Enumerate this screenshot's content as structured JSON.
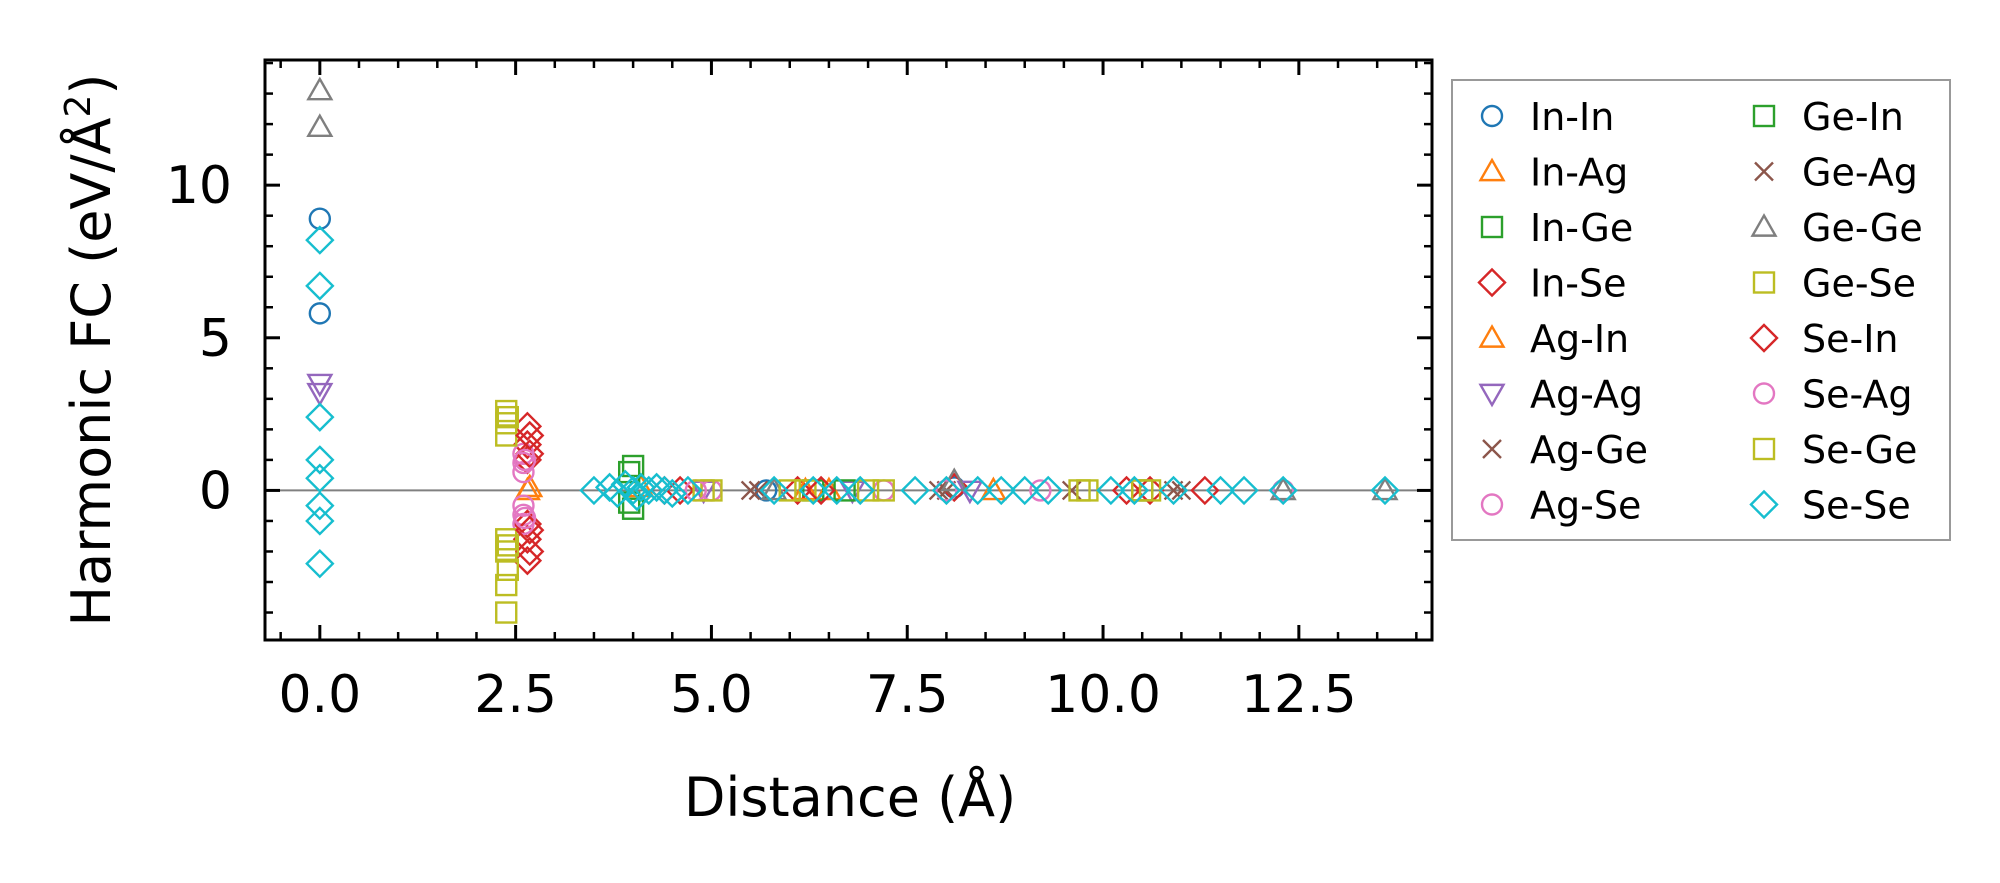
{
  "chart_data": {
    "type": "scatter",
    "title": "",
    "xlabel": "Distance (Å)",
    "ylabel": "Harmonic FC (eV/Å",
    "ylabel_sup": "2",
    "ylabel_end": ")",
    "xlim": [
      -0.7,
      14.2
    ],
    "ylim": [
      -4.9,
      14.1
    ],
    "x_ticks": [
      0.0,
      2.5,
      5.0,
      7.5,
      10.0,
      12.5
    ],
    "x_tick_labels": [
      "0.0",
      "2.5",
      "5.0",
      "7.5",
      "10.0",
      "12.5"
    ],
    "y_ticks": [
      0,
      5,
      10
    ],
    "y_tick_labels": [
      "0",
      "5",
      "10"
    ],
    "reference_line_y": 0,
    "legend_position": "outside-right",
    "series": [
      {
        "name": "In-In",
        "marker": "circle",
        "color": "#1f77b4",
        "points": [
          [
            0,
            8.9
          ],
          [
            0,
            5.8
          ],
          [
            5.7,
            0.0
          ],
          [
            8.1,
            0.1
          ],
          [
            12.3,
            0.0
          ]
        ]
      },
      {
        "name": "In-Ag",
        "marker": "triangle-up",
        "color": "#ff7f0e",
        "points": [
          [
            2.65,
            0.0
          ],
          [
            4.1,
            0.1
          ],
          [
            6.5,
            0.0
          ],
          [
            8.6,
            0.0
          ]
        ]
      },
      {
        "name": "In-Ge",
        "marker": "square",
        "color": "#2ca02c",
        "points": [
          [
            4.0,
            0.8
          ],
          [
            4.0,
            -0.6
          ],
          [
            6.3,
            0.0
          ],
          [
            10.5,
            0.0
          ]
        ]
      },
      {
        "name": "In-Se",
        "marker": "diamond",
        "color": "#d62728",
        "points": [
          [
            2.65,
            2.1
          ],
          [
            2.65,
            1.5
          ],
          [
            2.65,
            1.0
          ],
          [
            2.65,
            -1.1
          ],
          [
            2.65,
            -1.6
          ],
          [
            2.65,
            -2.3
          ],
          [
            4.4,
            0.0
          ],
          [
            6.1,
            0.0
          ],
          [
            8.1,
            0.1
          ],
          [
            10.3,
            0.0
          ],
          [
            11.3,
            0.0
          ]
        ]
      },
      {
        "name": "Ag-In",
        "marker": "triangle-up",
        "color": "#ff7f0e",
        "points": [
          [
            2.68,
            0.1
          ],
          [
            6.2,
            0.0
          ]
        ]
      },
      {
        "name": "Ag-Ag",
        "marker": "triangle-down",
        "color": "#9467bd",
        "points": [
          [
            0,
            3.5
          ],
          [
            0,
            3.2
          ],
          [
            4.9,
            0.0
          ],
          [
            6.8,
            0.0
          ],
          [
            8.3,
            0.0
          ]
        ]
      },
      {
        "name": "Ag-Ge",
        "marker": "x",
        "color": "#8c564b",
        "points": [
          [
            5.5,
            0.0
          ],
          [
            7.9,
            0.0
          ],
          [
            9.6,
            0.0
          ],
          [
            11.0,
            0.0
          ]
        ]
      },
      {
        "name": "Ag-Se",
        "marker": "circle",
        "color": "#e377c2",
        "points": [
          [
            2.6,
            1.2
          ],
          [
            2.6,
            0.9
          ],
          [
            2.6,
            0.6
          ],
          [
            2.6,
            -0.5
          ],
          [
            2.6,
            -0.8
          ],
          [
            2.6,
            -1.1
          ],
          [
            5.0,
            0.0
          ],
          [
            7.2,
            0.0
          ],
          [
            9.2,
            0.0
          ],
          [
            12.3,
            0.0
          ]
        ]
      },
      {
        "name": "Ge-In",
        "marker": "square",
        "color": "#2ca02c",
        "points": [
          [
            3.95,
            0.6
          ],
          [
            3.95,
            -0.4
          ],
          [
            6.7,
            0.0
          ]
        ]
      },
      {
        "name": "Ge-Ag",
        "marker": "x",
        "color": "#8c564b",
        "points": [
          [
            5.6,
            0.0
          ],
          [
            8.0,
            0.0
          ],
          [
            10.9,
            0.0
          ]
        ]
      },
      {
        "name": "Ge-Ge",
        "marker": "triangle-up",
        "color": "#7f7f7f",
        "points": [
          [
            0,
            13.1
          ],
          [
            0,
            11.9
          ],
          [
            5.8,
            0.0
          ],
          [
            8.1,
            0.3
          ],
          [
            12.3,
            0.0
          ],
          [
            13.6,
            0.0
          ]
        ]
      },
      {
        "name": "Ge-Se",
        "marker": "square",
        "color": "#bcbd22",
        "points": [
          [
            2.38,
            2.6
          ],
          [
            2.38,
            2.2
          ],
          [
            2.38,
            1.8
          ],
          [
            2.38,
            -1.6
          ],
          [
            2.38,
            -2.0
          ],
          [
            2.38,
            -3.1
          ],
          [
            2.38,
            -4.0
          ],
          [
            5.0,
            0.0
          ],
          [
            6.2,
            0.0
          ],
          [
            7.0,
            0.0
          ],
          [
            9.7,
            0.0
          ],
          [
            10.5,
            0.0
          ]
        ]
      },
      {
        "name": "Se-In",
        "marker": "diamond",
        "color": "#d62728",
        "points": [
          [
            2.68,
            1.8
          ],
          [
            2.68,
            1.2
          ],
          [
            2.68,
            -1.3
          ],
          [
            2.68,
            -2.0
          ],
          [
            4.6,
            0.0
          ],
          [
            6.4,
            0.0
          ],
          [
            10.6,
            0.0
          ]
        ]
      },
      {
        "name": "Se-Ag",
        "marker": "circle",
        "color": "#e377c2",
        "points": [
          [
            2.62,
            1.0
          ],
          [
            2.62,
            -0.9
          ],
          [
            4.8,
            0.0
          ],
          [
            8.0,
            0.0
          ]
        ]
      },
      {
        "name": "Se-Ge",
        "marker": "square",
        "color": "#bcbd22",
        "points": [
          [
            2.4,
            2.4
          ],
          [
            2.4,
            -1.8
          ],
          [
            2.4,
            -2.6
          ],
          [
            4.9,
            0.0
          ],
          [
            6.0,
            0.0
          ],
          [
            7.2,
            0.0
          ],
          [
            9.8,
            0.0
          ],
          [
            10.6,
            0.0
          ]
        ]
      },
      {
        "name": "Se-Se",
        "marker": "diamond",
        "color": "#17becf",
        "points": [
          [
            0,
            8.2
          ],
          [
            0,
            6.7
          ],
          [
            0,
            2.4
          ],
          [
            0,
            1.0
          ],
          [
            0,
            0.4
          ],
          [
            0,
            -0.5
          ],
          [
            0,
            -1.0
          ],
          [
            0,
            -2.4
          ],
          [
            3.5,
            0.0
          ],
          [
            3.7,
            0.1
          ],
          [
            3.8,
            -0.1
          ],
          [
            3.9,
            0.2
          ],
          [
            4.0,
            0.0
          ],
          [
            4.05,
            -0.2
          ],
          [
            4.1,
            0.1
          ],
          [
            4.2,
            0.0
          ],
          [
            4.3,
            0.1
          ],
          [
            4.4,
            0.0
          ],
          [
            4.5,
            -0.1
          ],
          [
            4.7,
            0.0
          ],
          [
            5.8,
            0.0
          ],
          [
            6.3,
            0.0
          ],
          [
            6.6,
            0.0
          ],
          [
            6.9,
            0.0
          ],
          [
            7.6,
            0.0
          ],
          [
            8.0,
            0.0
          ],
          [
            8.4,
            0.0
          ],
          [
            8.7,
            0.0
          ],
          [
            9.0,
            0.0
          ],
          [
            9.3,
            0.0
          ],
          [
            10.1,
            0.0
          ],
          [
            10.4,
            0.0
          ],
          [
            10.9,
            0.0
          ],
          [
            11.5,
            0.0
          ],
          [
            11.8,
            0.0
          ],
          [
            12.3,
            0.0
          ],
          [
            13.6,
            0.0
          ]
        ]
      }
    ]
  }
}
